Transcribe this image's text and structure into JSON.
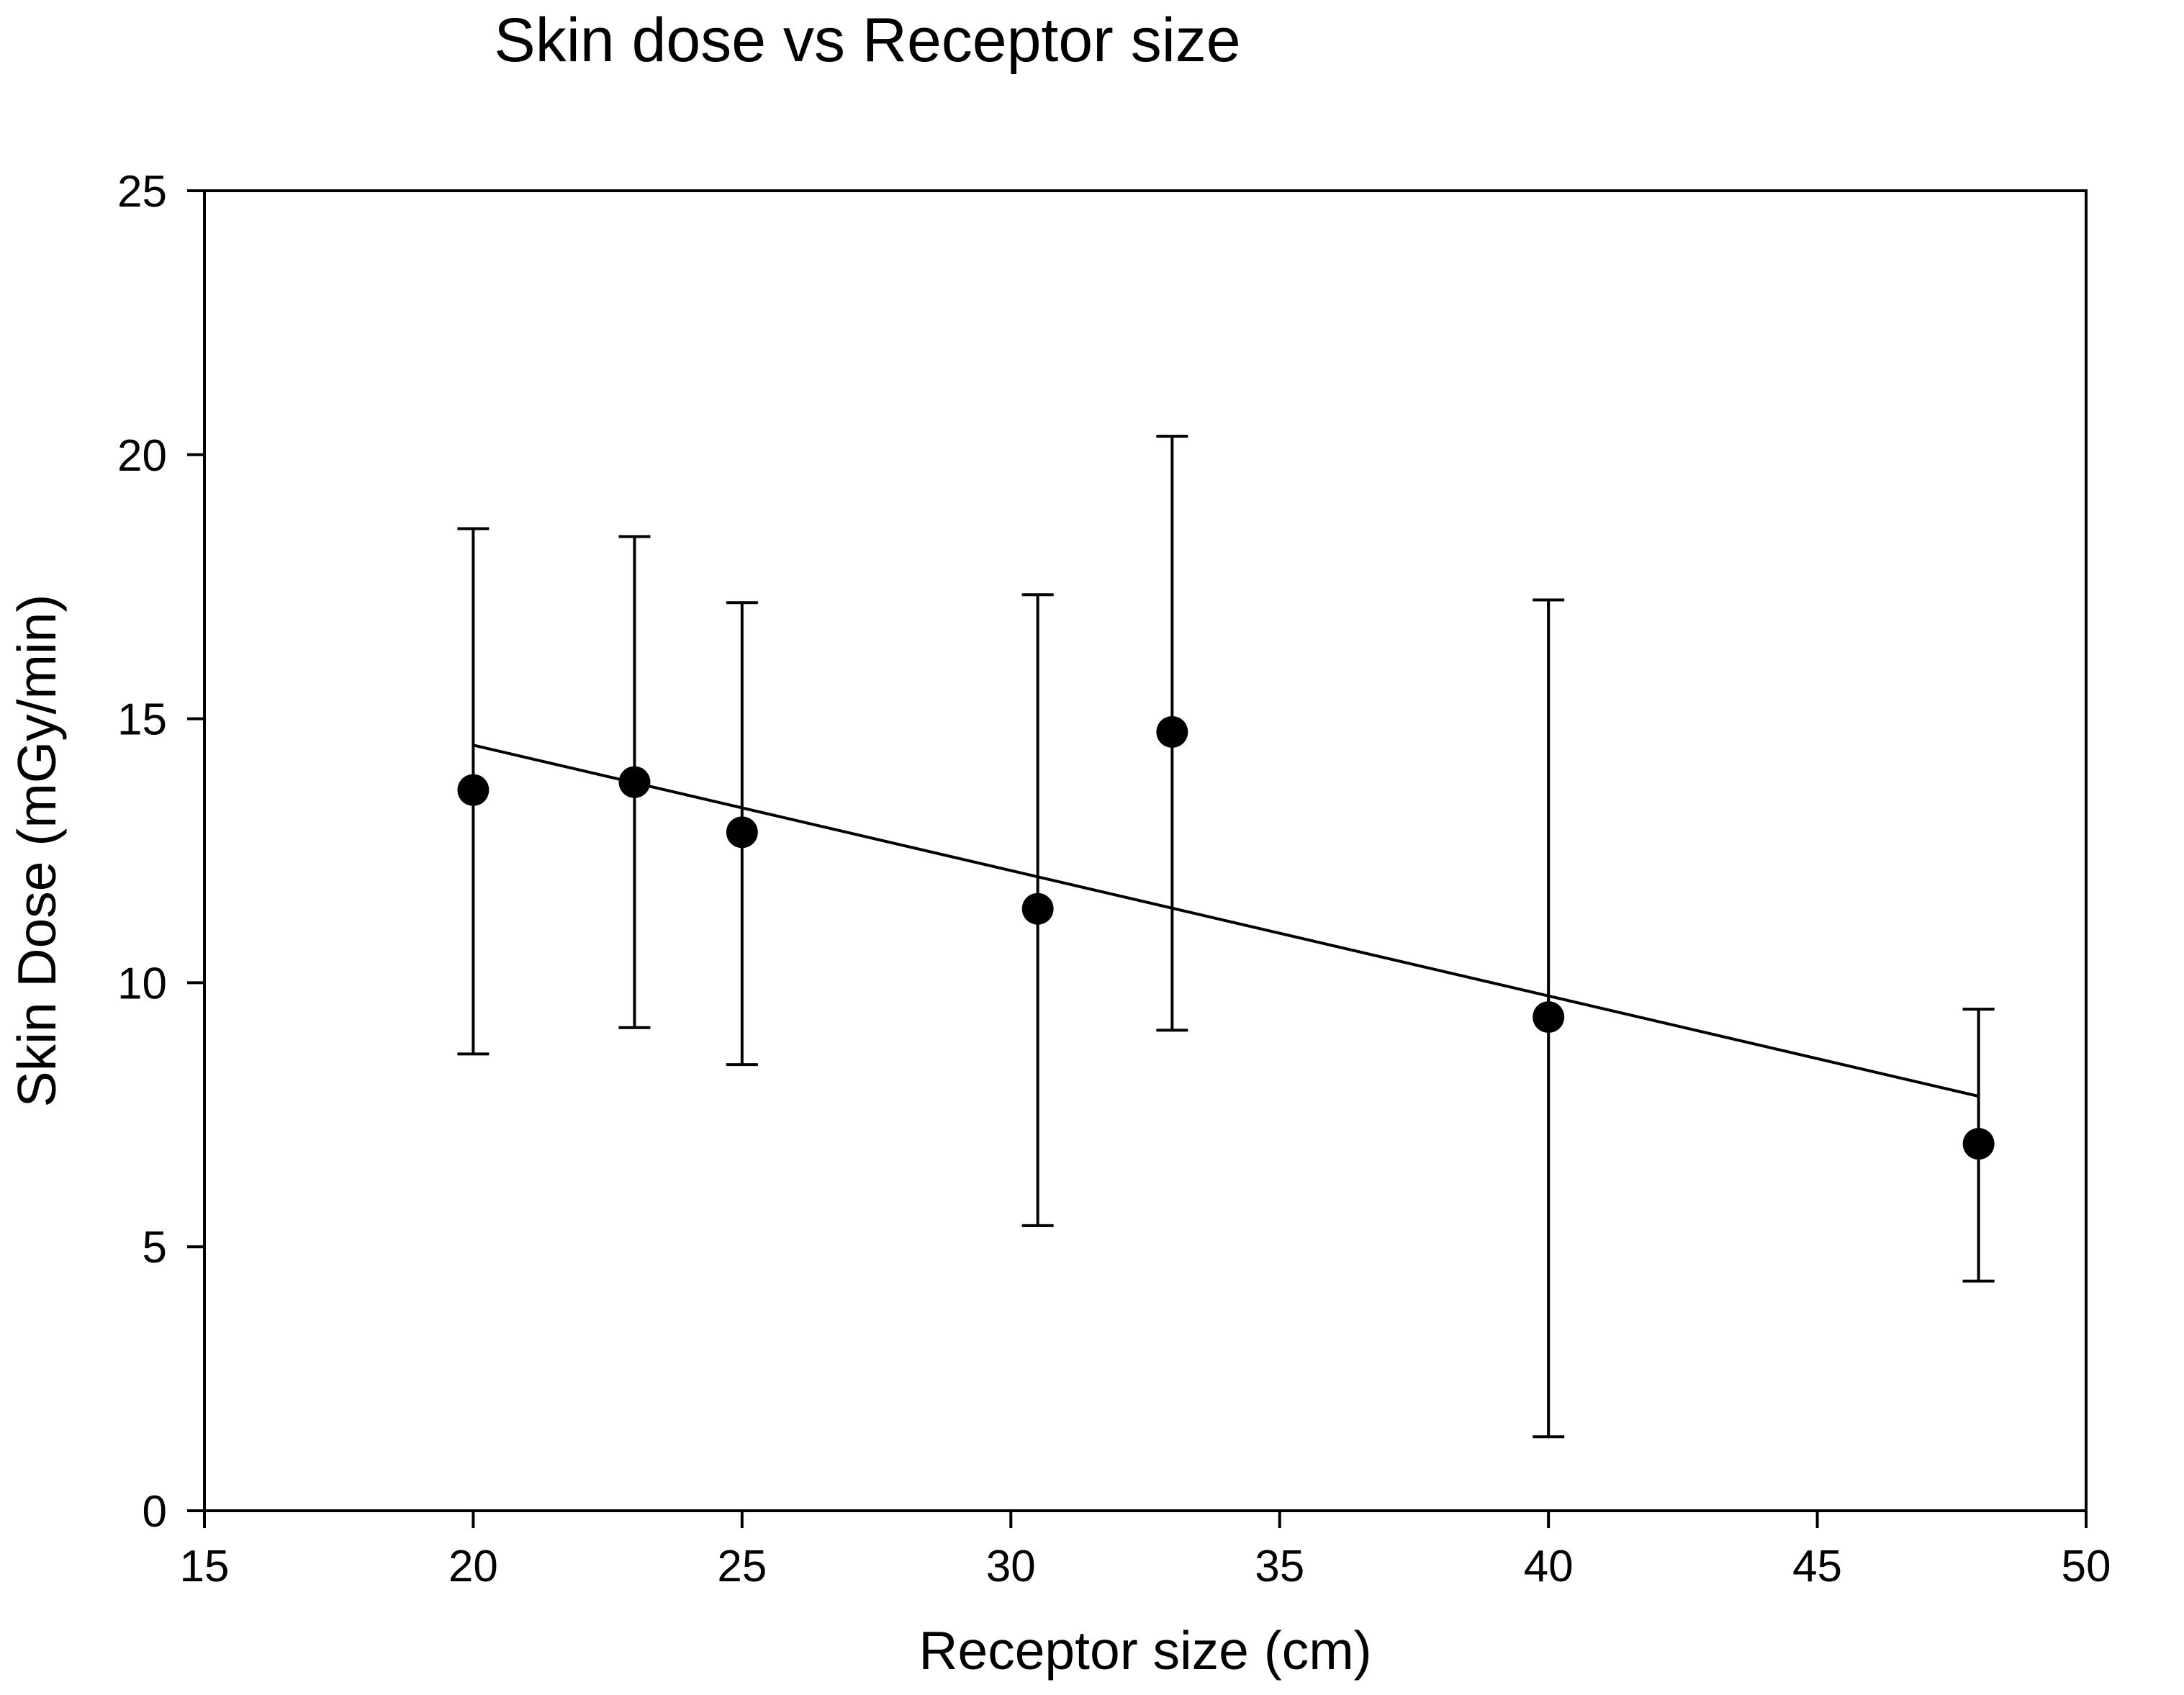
{
  "chart_data": {
    "type": "scatter",
    "title": "Skin dose vs Receptor size",
    "xlabel": "Receptor size (cm)",
    "ylabel": "Skin Dose (mGy/min)",
    "xlim": [
      15,
      50
    ],
    "ylim": [
      0,
      25
    ],
    "xticks": [
      15,
      20,
      25,
      30,
      35,
      40,
      45,
      50
    ],
    "yticks": [
      0,
      5,
      10,
      15,
      20,
      25
    ],
    "grid": false,
    "legend": "none",
    "series": [
      {
        "points": [
          {
            "x": 20,
            "y": 13.65,
            "err_low": 8.65,
            "err_high": 18.6
          },
          {
            "x": 23,
            "y": 13.8,
            "err_low": 9.15,
            "err_high": 18.45
          },
          {
            "x": 25,
            "y": 12.85,
            "err_low": 8.45,
            "err_high": 17.2
          },
          {
            "x": 30.5,
            "y": 11.4,
            "err_low": 5.4,
            "err_high": 17.35
          },
          {
            "x": 33,
            "y": 14.75,
            "err_low": 9.1,
            "err_high": 20.35
          },
          {
            "x": 40,
            "y": 9.35,
            "err_low": 1.4,
            "err_high": 17.25
          },
          {
            "x": 48,
            "y": 6.95,
            "err_low": 4.35,
            "err_high": 9.5
          }
        ]
      }
    ],
    "trendline": {
      "x": [
        20,
        48
      ],
      "y": [
        14.5,
        7.85
      ]
    },
    "colors": {
      "marker": "#000000",
      "line": "#000000",
      "background": "#ffffff"
    }
  }
}
